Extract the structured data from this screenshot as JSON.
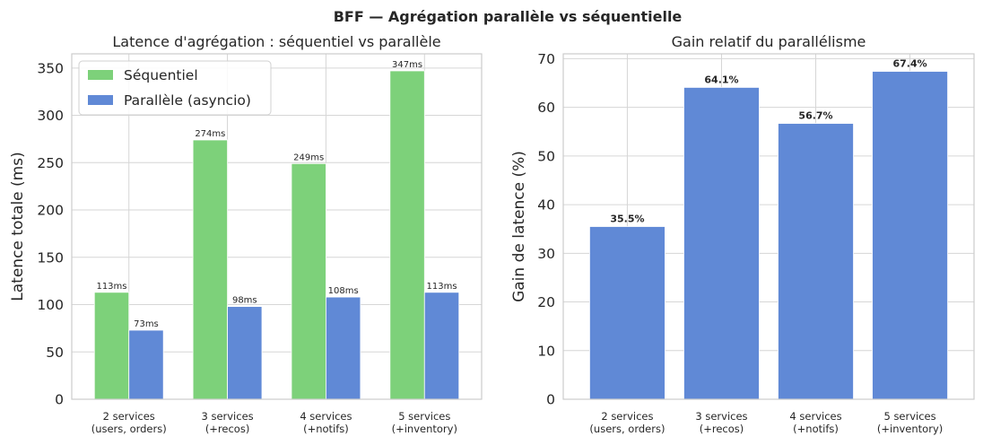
{
  "figure_title": "BFF — Agrégation parallèle vs séquentielle",
  "chart_data": [
    {
      "type": "bar",
      "title": "Latence d'agrégation : séquentiel vs parallèle",
      "xlabel": "",
      "ylabel": "Latence totale (ms)",
      "ylim": [
        0,
        365
      ],
      "yticks": [
        0,
        50,
        100,
        150,
        200,
        250,
        300,
        350
      ],
      "grid": true,
      "legend": "top-left",
      "categories": [
        [
          "2 services",
          "(users, orders)"
        ],
        [
          "3 services",
          "(+recos)"
        ],
        [
          "4 services",
          "(+notifs)"
        ],
        [
          "5 services",
          "(+inventory)"
        ]
      ],
      "series": [
        {
          "name": "Séquentiel",
          "color": "#7dd17a",
          "values": [
            113,
            274,
            249,
            347
          ],
          "labels": [
            "113ms",
            "274ms",
            "249ms",
            "347ms"
          ]
        },
        {
          "name": "Parallèle (asyncio)",
          "color": "#6089d6",
          "values": [
            73,
            98,
            108,
            113
          ],
          "labels": [
            "73ms",
            "98ms",
            "108ms",
            "113ms"
          ]
        }
      ]
    },
    {
      "type": "bar",
      "title": "Gain relatif du parallélisme",
      "xlabel": "",
      "ylabel": "Gain de latence (%)",
      "ylim": [
        0,
        71
      ],
      "yticks": [
        0,
        10,
        20,
        30,
        40,
        50,
        60,
        70
      ],
      "grid": true,
      "categories": [
        [
          "2 services",
          "(users, orders)"
        ],
        [
          "3 services",
          "(+recos)"
        ],
        [
          "4 services",
          "(+notifs)"
        ],
        [
          "5 services",
          "(+inventory)"
        ]
      ],
      "series": [
        {
          "name": "Gain",
          "color": "#6089d6",
          "values": [
            35.5,
            64.1,
            56.7,
            67.4
          ],
          "labels": [
            "35.5%",
            "64.1%",
            "56.7%",
            "67.4%"
          ]
        }
      ]
    }
  ]
}
